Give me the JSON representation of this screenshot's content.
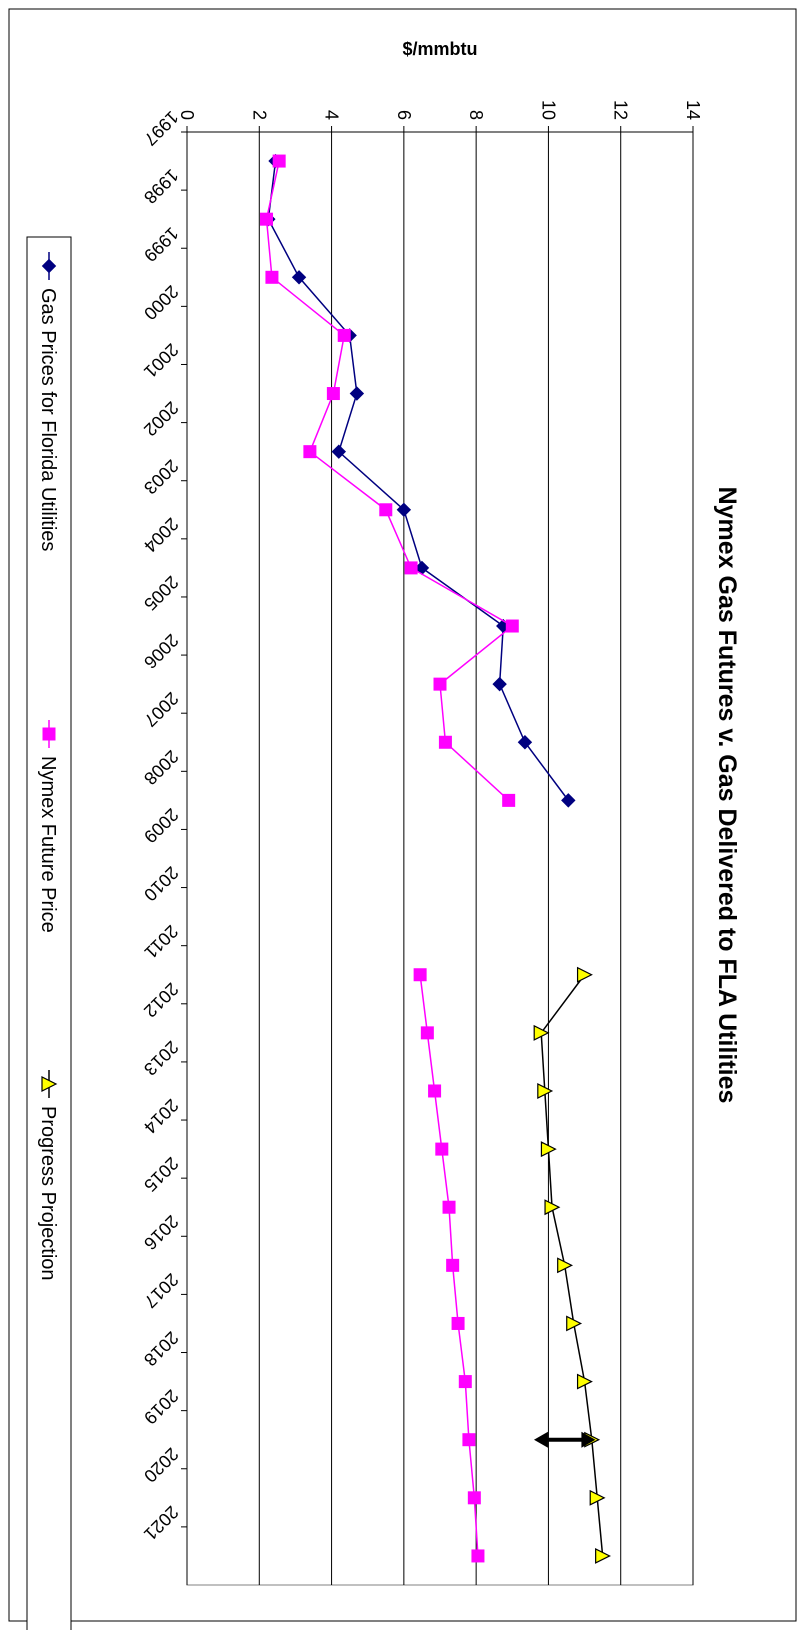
{
  "chart_data": {
    "type": "line",
    "title": "Nymex Gas Futures v. Gas Delivered to FLA Utilities",
    "ylabel": "$/mmbtu",
    "xlabel": "",
    "ylim": [
      0,
      14
    ],
    "y_ticks": [
      0,
      2,
      4,
      6,
      8,
      10,
      12,
      14
    ],
    "categories": [
      "1997",
      "1998",
      "1999",
      "2000",
      "2001",
      "2002",
      "2003",
      "2004",
      "2005",
      "2006",
      "2007",
      "2008",
      "2009",
      "2010",
      "2011",
      "2012",
      "2013",
      "2014",
      "2015",
      "2016",
      "2017",
      "2018",
      "2019",
      "2020",
      "2021"
    ],
    "grid": true,
    "legend_position": "bottom",
    "series": [
      {
        "name": "Gas Prices for Florida Utilities",
        "color": "#000080",
        "marker": "diamond",
        "points": [
          {
            "x": 1997.5,
            "y": 2.45
          },
          {
            "x": 1998.5,
            "y": 2.25
          },
          {
            "x": 1999.5,
            "y": 3.1
          },
          {
            "x": 2000.5,
            "y": 4.5
          },
          {
            "x": 2001.5,
            "y": 4.7
          },
          {
            "x": 2002.5,
            "y": 4.2
          },
          {
            "x": 2003.5,
            "y": 6.0
          },
          {
            "x": 2004.5,
            "y": 6.5
          },
          {
            "x": 2005.5,
            "y": 8.75
          },
          {
            "x": 2006.5,
            "y": 8.65
          },
          {
            "x": 2007.5,
            "y": 9.35
          },
          {
            "x": 2008.5,
            "y": 10.55
          }
        ]
      },
      {
        "name": "Nymex Future Price",
        "color": "#ff00ff",
        "marker": "square",
        "points": [
          {
            "x": 1997.5,
            "y": 2.55
          },
          {
            "x": 1998.5,
            "y": 2.2
          },
          {
            "x": 1999.5,
            "y": 2.35
          },
          {
            "x": 2000.5,
            "y": 4.35
          },
          {
            "x": 2001.5,
            "y": 4.05
          },
          {
            "x": 2002.5,
            "y": 3.4
          },
          {
            "x": 2003.5,
            "y": 5.5
          },
          {
            "x": 2004.5,
            "y": 6.2
          },
          {
            "x": 2005.5,
            "y": 9.0
          },
          {
            "x": 2006.5,
            "y": 7.0
          },
          {
            "x": 2007.5,
            "y": 7.15
          },
          {
            "x": 2008.5,
            "y": 8.9
          },
          {
            "x": 2011.5,
            "y": 6.45
          },
          {
            "x": 2012.5,
            "y": 6.65
          },
          {
            "x": 2013.5,
            "y": 6.85
          },
          {
            "x": 2014.5,
            "y": 7.05
          },
          {
            "x": 2015.5,
            "y": 7.25
          },
          {
            "x": 2016.5,
            "y": 7.35
          },
          {
            "x": 2017.5,
            "y": 7.5
          },
          {
            "x": 2018.5,
            "y": 7.7
          },
          {
            "x": 2019.5,
            "y": 7.8
          },
          {
            "x": 2020.5,
            "y": 7.95
          },
          {
            "x": 2021.5,
            "y": 8.05
          }
        ]
      },
      {
        "name": "Progress Projection",
        "color": "#000000",
        "marker": "triangle",
        "marker_fill": "#ffff00",
        "points": [
          {
            "x": 2011.5,
            "y": 11.0
          },
          {
            "x": 2012.5,
            "y": 9.8
          },
          {
            "x": 2013.5,
            "y": 9.9
          },
          {
            "x": 2014.5,
            "y": 10.0
          },
          {
            "x": 2015.5,
            "y": 10.1
          },
          {
            "x": 2016.5,
            "y": 10.45
          },
          {
            "x": 2017.5,
            "y": 10.7
          },
          {
            "x": 2018.5,
            "y": 11.0
          },
          {
            "x": 2019.5,
            "y": 11.2
          },
          {
            "x": 2020.5,
            "y": 11.35
          },
          {
            "x": 2021.5,
            "y": 11.5
          }
        ]
      }
    ],
    "annotations": [
      {
        "type": "double-arrow",
        "x": 2019.5,
        "y_from": 11.3,
        "y_to": 9.6
      }
    ]
  }
}
